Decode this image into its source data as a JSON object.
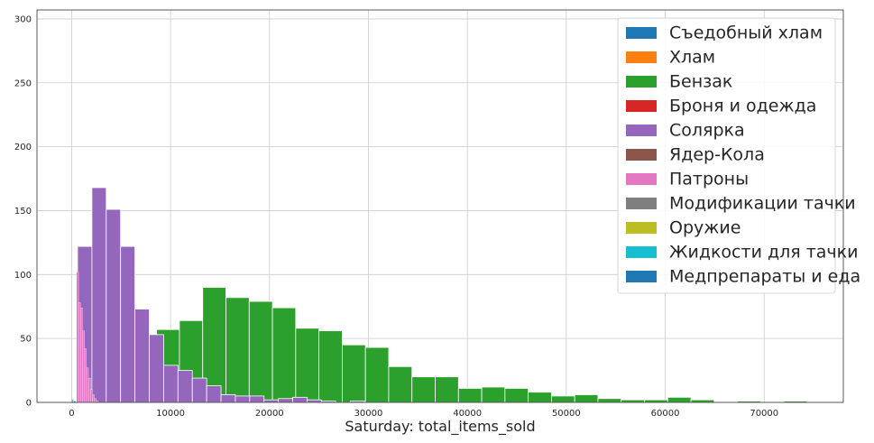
{
  "chart_data": {
    "type": "histogram",
    "title": "",
    "xlabel": "Saturday: total_items_sold",
    "ylabel": "",
    "xlim": [
      -3500,
      78000
    ],
    "ylim": [
      0,
      307
    ],
    "xticks": [
      0,
      10000,
      20000,
      30000,
      40000,
      50000,
      60000,
      70000
    ],
    "yticks": [
      0,
      50,
      100,
      150,
      200,
      250,
      300
    ],
    "grid": true,
    "legend_position": "top-right",
    "series": [
      {
        "name": "Съедобный хлам",
        "color": "#1f77b4",
        "bins": [
          [
            0,
            200,
            2
          ],
          [
            200,
            400,
            1
          ]
        ]
      },
      {
        "name": "Хлам",
        "color": "#ff7f0e",
        "bins": [
          [
            0,
            150,
            1
          ]
        ]
      },
      {
        "name": "Бензак",
        "color": "#2ca02c",
        "bins": [
          [
            8600,
            10900,
            57
          ],
          [
            10900,
            13250,
            64
          ],
          [
            13250,
            15600,
            90
          ],
          [
            15600,
            17950,
            82
          ],
          [
            17950,
            20300,
            79
          ],
          [
            20300,
            22650,
            74
          ],
          [
            22650,
            25000,
            58
          ],
          [
            25000,
            27350,
            56
          ],
          [
            27350,
            29700,
            45
          ],
          [
            29700,
            32050,
            43
          ],
          [
            32050,
            34400,
            28
          ],
          [
            34400,
            36750,
            20
          ],
          [
            36750,
            39100,
            20
          ],
          [
            39100,
            41450,
            11
          ],
          [
            41450,
            43800,
            12
          ],
          [
            43800,
            46150,
            11
          ],
          [
            46150,
            48500,
            8
          ],
          [
            48500,
            50850,
            5
          ],
          [
            50850,
            53200,
            6
          ],
          [
            53200,
            55550,
            3
          ],
          [
            55550,
            57900,
            2
          ],
          [
            57900,
            60250,
            2
          ],
          [
            60250,
            62600,
            4
          ],
          [
            62600,
            64950,
            2
          ],
          [
            64950,
            67300,
            0
          ],
          [
            67300,
            69650,
            1
          ],
          [
            69650,
            72000,
            0
          ],
          [
            72000,
            74350,
            1
          ]
        ]
      },
      {
        "name": "Броня и одежда",
        "color": "#d62728",
        "bins": [
          [
            0,
            150,
            1
          ]
        ]
      },
      {
        "name": "Солярка",
        "color": "#9467bd",
        "bins": [
          [
            600,
            2050,
            122
          ],
          [
            2050,
            3500,
            168
          ],
          [
            3500,
            4950,
            151
          ],
          [
            4950,
            6400,
            122
          ],
          [
            6400,
            7850,
            73
          ],
          [
            7850,
            9300,
            53
          ],
          [
            9300,
            10750,
            29
          ],
          [
            10750,
            12200,
            25
          ],
          [
            12200,
            13650,
            19
          ],
          [
            13650,
            15100,
            13
          ],
          [
            15100,
            16550,
            6
          ],
          [
            16550,
            18000,
            5
          ],
          [
            18000,
            19450,
            5
          ],
          [
            19450,
            20900,
            2
          ],
          [
            20900,
            22350,
            3
          ],
          [
            22350,
            23800,
            4
          ],
          [
            23800,
            25250,
            2
          ],
          [
            25250,
            26700,
            1
          ],
          [
            26700,
            28150,
            0
          ],
          [
            28150,
            29600,
            1
          ]
        ]
      },
      {
        "name": "Ядер-Кола",
        "color": "#8c564b",
        "bins": [
          [
            0,
            150,
            1
          ]
        ]
      },
      {
        "name": "Патроны",
        "color": "#e377c2",
        "bins": [
          [
            500,
            700,
            102
          ],
          [
            700,
            900,
            78
          ],
          [
            900,
            1100,
            74
          ],
          [
            1100,
            1300,
            56
          ],
          [
            1300,
            1500,
            42
          ],
          [
            1500,
            1700,
            27
          ],
          [
            1700,
            1900,
            19
          ],
          [
            1900,
            2100,
            10
          ],
          [
            2100,
            2300,
            6
          ],
          [
            2300,
            2500,
            3
          ],
          [
            2500,
            2700,
            1
          ]
        ]
      },
      {
        "name": "Модификации тачки",
        "color": "#7f7f7f",
        "bins": [
          [
            0,
            150,
            1
          ]
        ]
      },
      {
        "name": "Оружие",
        "color": "#bcbd22",
        "bins": [
          [
            0,
            150,
            1
          ]
        ]
      },
      {
        "name": "Жидкости для тачки",
        "color": "#17becf",
        "bins": [
          [
            0,
            150,
            1
          ]
        ]
      },
      {
        "name": "Медпрепараты и еда",
        "color": "#1f77b4",
        "bins": [
          [
            0,
            150,
            1
          ]
        ]
      }
    ]
  }
}
